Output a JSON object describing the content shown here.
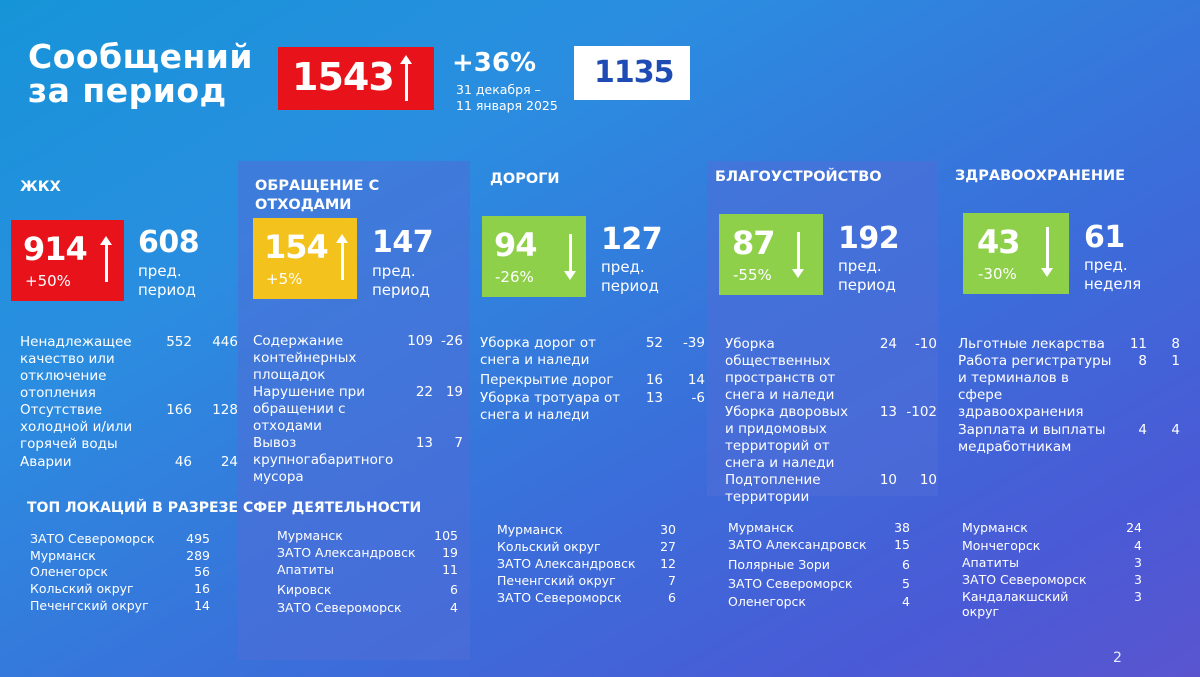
{
  "header": {
    "title_line1": "Сообщений",
    "title_line2": "за период",
    "total": "1543",
    "growth": "+36%",
    "dates_line1": "31 декабря –",
    "dates_line2": "11 января 2025",
    "previous_total": "1135"
  },
  "colors": {
    "red": "#e8121b",
    "yellow": "#f4c21c",
    "green": "#8fd04b",
    "white_box_text": "#1f4bb5"
  },
  "categories": [
    {
      "name": "ЖКХ",
      "value": "914",
      "change": "+50%",
      "trend": "up",
      "color": "red",
      "prev_value": "608",
      "prev_label_1": "пред.",
      "prev_label_2": "период",
      "rows": [
        {
          "label": [
            "Ненадлежащее",
            "качество или",
            "отключение",
            "отопления"
          ],
          "v1": "552",
          "v2": "446"
        },
        {
          "label": [
            "Отсутствие",
            "холодной и/или",
            "горячей воды"
          ],
          "v1": "166",
          "v2": "128"
        },
        {
          "label": [
            "Аварии"
          ],
          "v1": "46",
          "v2": "24"
        }
      ],
      "locations": [
        {
          "name": "ЗАТО Североморск",
          "value": "495"
        },
        {
          "name": "Мурманск",
          "value": "289"
        },
        {
          "name": "Оленегорск",
          "value": "56"
        },
        {
          "name": "Кольский округ",
          "value": "16"
        },
        {
          "name": "Печенгский округ",
          "value": "14"
        }
      ]
    },
    {
      "name_line1": "ОБРАЩЕНИЕ С",
      "name_line2": "ОТХОДАМИ",
      "value": "154",
      "change": "+5%",
      "trend": "up",
      "color": "yellow",
      "prev_value": "147",
      "prev_label_1": "пред.",
      "prev_label_2": "период",
      "rows": [
        {
          "label": [
            "Содержание",
            "контейнерных",
            "площадок"
          ],
          "v1": "109",
          "v2": "-26"
        },
        {
          "label": [
            "Нарушение при",
            "обращении с",
            "отходами"
          ],
          "v1": "22",
          "v2": "19"
        },
        {
          "label": [
            "Вывоз",
            "крупногабаритного",
            "мусора"
          ],
          "v1": "13",
          "v2": "7"
        }
      ],
      "locations": [
        {
          "name": "Мурманск",
          "value": "105"
        },
        {
          "name": "ЗАТО Александровск",
          "value": "19"
        },
        {
          "name": "Апатиты",
          "value": "11"
        },
        {
          "name": "Кировск",
          "value": "6"
        },
        {
          "name": "ЗАТО Североморск",
          "value": "4"
        }
      ]
    },
    {
      "name": "ДОРОГИ",
      "value": "94",
      "change": "-26%",
      "trend": "down",
      "color": "green",
      "prev_value": "127",
      "prev_label_1": "пред.",
      "prev_label_2": "период",
      "rows": [
        {
          "label": [
            "Уборка дорог от",
            "снега и наледи"
          ],
          "v1": "52",
          "v2": "-39"
        },
        {
          "label": [
            "Перекрытие дорог"
          ],
          "v1": "16",
          "v2": "14"
        },
        {
          "label": [
            "Уборка тротуара от",
            "снега и наледи"
          ],
          "v1": "13",
          "v2": "-6"
        }
      ],
      "locations": [
        {
          "name": "Мурманск",
          "value": "30"
        },
        {
          "name": "Кольский округ",
          "value": "27"
        },
        {
          "name": "ЗАТО Александровск",
          "value": "12"
        },
        {
          "name": "Печенгский округ",
          "value": "7"
        },
        {
          "name": "ЗАТО Североморск",
          "value": "6"
        }
      ]
    },
    {
      "name": "БЛАГОУСТРОЙСТВО",
      "value": "87",
      "change": "-55%",
      "trend": "down",
      "color": "green",
      "prev_value": "192",
      "prev_label_1": "пред.",
      "prev_label_2": "период",
      "rows": [
        {
          "label": [
            "Уборка",
            "общественных",
            "пространств от",
            "снега и наледи"
          ],
          "v1": "24",
          "v2": "-10"
        },
        {
          "label": [
            "Уборка дворовых",
            "и придомовых",
            "территорий от",
            "снега и наледи"
          ],
          "v1": "13",
          "v2": "-102"
        },
        {
          "label": [
            "Подтопление",
            "территории"
          ],
          "v1": "10",
          "v2": "10"
        }
      ],
      "locations": [
        {
          "name": "Мурманск",
          "value": "38"
        },
        {
          "name": "ЗАТО Александровск",
          "value": "15"
        },
        {
          "name": "Полярные Зори",
          "value": "6"
        },
        {
          "name": "ЗАТО Североморск",
          "value": "5"
        },
        {
          "name": "Оленегорск",
          "value": "4"
        }
      ]
    },
    {
      "name": "ЗДРАВООХРАНЕНИЕ",
      "value": "43",
      "change": "-30%",
      "trend": "down",
      "color": "green",
      "prev_value": "61",
      "prev_label_1": "пред.",
      "prev_label_2": "неделя",
      "rows": [
        {
          "label": [
            "Льготные лекарства"
          ],
          "v1": "11",
          "v2": "8"
        },
        {
          "label": [
            "Работа регистратуры",
            "и терминалов в",
            "сфере",
            "здравоохранения"
          ],
          "v1": "8",
          "v2": "1"
        },
        {
          "label": [
            "Зарплата и выплаты",
            "медработникам"
          ],
          "v1": "4",
          "v2": "4"
        }
      ],
      "locations": [
        {
          "name": "Мурманск",
          "value": "24"
        },
        {
          "name": "Мончегорск",
          "value": "4"
        },
        {
          "name": "Апатиты",
          "value": "3"
        },
        {
          "name": "ЗАТО Североморск",
          "value": "3"
        },
        {
          "name": "Кандалакшский округ",
          "value": "3"
        }
      ]
    }
  ],
  "top_locations_heading": "ТОП ЛОКАЦИЙ В РАЗРЕЗЕ СФЕР ДЕЯТЕЛЬНОСТИ",
  "page_number": "2"
}
